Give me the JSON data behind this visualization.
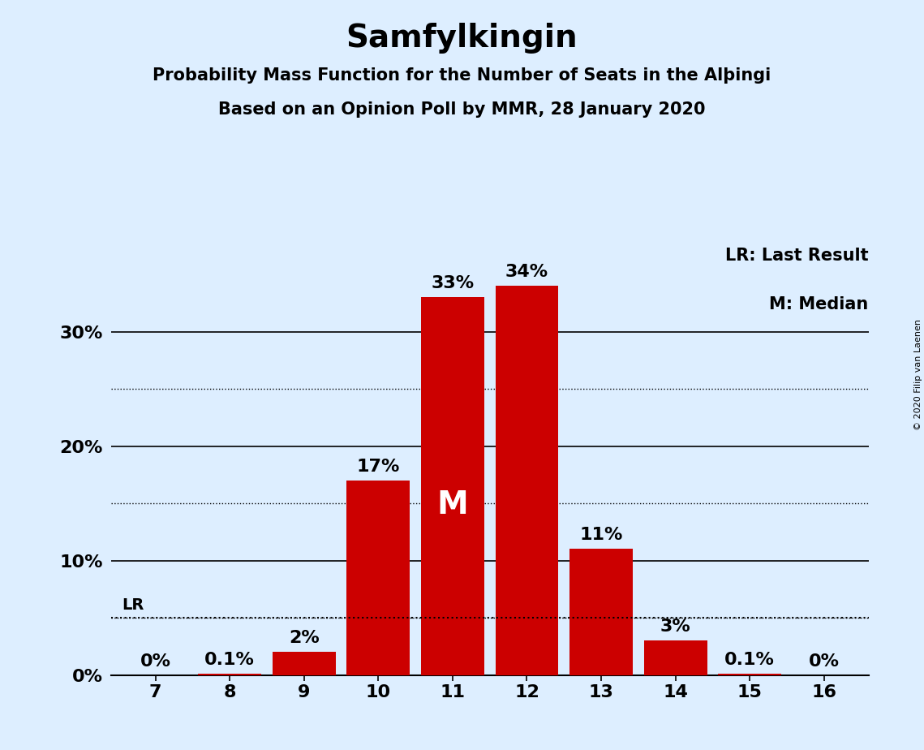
{
  "title": "Samfylkingin",
  "subtitle1": "Probability Mass Function for the Number of Seats in the Alþingi",
  "subtitle2": "Based on an Opinion Poll by MMR, 28 January 2020",
  "copyright": "© 2020 Filip van Laenen",
  "seats": [
    7,
    8,
    9,
    10,
    11,
    12,
    13,
    14,
    15,
    16
  ],
  "probabilities": [
    0.0,
    0.1,
    2.0,
    17.0,
    33.0,
    34.0,
    11.0,
    3.0,
    0.1,
    0.0
  ],
  "bar_color": "#CC0000",
  "background_color": "#DDEEFF",
  "median_seat": 11,
  "lr_level": 5.0,
  "legend_lr": "LR: Last Result",
  "legend_m": "M: Median",
  "solid_yticks": [
    0,
    10,
    20,
    30
  ],
  "dotted_yticks": [
    5,
    15,
    25
  ],
  "ylim": [
    0,
    38
  ],
  "label_formats": {
    "0.0": "0%",
    "0.1": "0.1%",
    "2.0": "2%",
    "17.0": "17%",
    "33.0": "33%",
    "34.0": "34%",
    "11.0": "11%",
    "3.0": "3%"
  },
  "title_fontsize": 28,
  "subtitle_fontsize": 15,
  "tick_fontsize": 16,
  "label_fontsize": 16,
  "legend_fontsize": 15,
  "m_fontsize": 28,
  "copyright_fontsize": 8
}
